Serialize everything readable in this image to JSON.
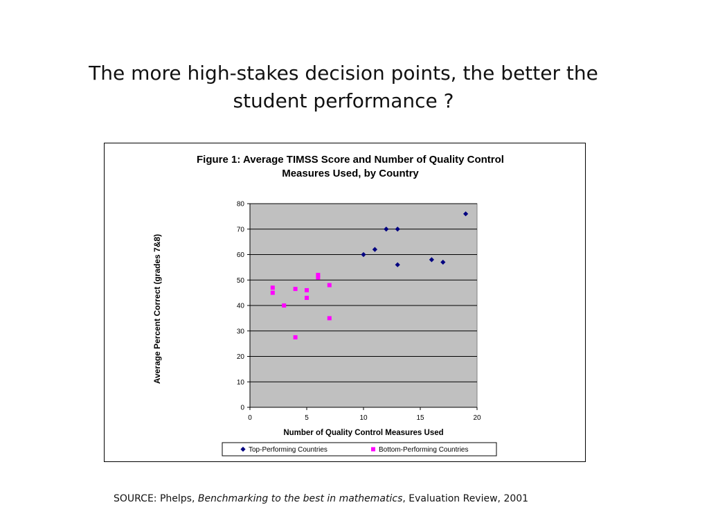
{
  "slide": {
    "title_line1": "The more high-stakes decision points, the better the",
    "title_line2": "student performance ?"
  },
  "source": {
    "prefix": "SOURCE: Phelps, ",
    "italic": "Benchmarking to the best in mathematics",
    "suffix": ", Evaluation Review, 2001"
  },
  "chart_data": {
    "type": "scatter",
    "title_line1": "Figure 1: Average TIMSS Score and Number of Quality Control",
    "title_line2": "Measures Used, by Country",
    "xlabel": "Number of Quality Control Measures Used",
    "ylabel": "Average Percent Correct (grades 7&8)",
    "xlim": [
      0,
      20
    ],
    "ylim": [
      0,
      80
    ],
    "xticks": [
      0,
      5,
      10,
      15,
      20
    ],
    "yticks": [
      0,
      10,
      20,
      30,
      40,
      50,
      60,
      70,
      80
    ],
    "grid": "horizontal",
    "plot_background": "#c0c0c0",
    "legend_position": "bottom",
    "series": [
      {
        "name": "Top-Performing Countries",
        "marker": "diamond",
        "color": "#000080",
        "points": [
          {
            "x": 10,
            "y": 60
          },
          {
            "x": 11,
            "y": 62
          },
          {
            "x": 12,
            "y": 70
          },
          {
            "x": 13,
            "y": 70
          },
          {
            "x": 13,
            "y": 56
          },
          {
            "x": 16,
            "y": 58
          },
          {
            "x": 17,
            "y": 57
          },
          {
            "x": 19,
            "y": 76
          }
        ]
      },
      {
        "name": "Bottom-Performing Countries",
        "marker": "square",
        "color": "#ff00ff",
        "points": [
          {
            "x": 2,
            "y": 47
          },
          {
            "x": 2,
            "y": 45
          },
          {
            "x": 3,
            "y": 40
          },
          {
            "x": 4,
            "y": 46.5
          },
          {
            "x": 4,
            "y": 27.5
          },
          {
            "x": 5,
            "y": 46
          },
          {
            "x": 5,
            "y": 43
          },
          {
            "x": 6,
            "y": 52
          },
          {
            "x": 6,
            "y": 51
          },
          {
            "x": 7,
            "y": 48
          },
          {
            "x": 7,
            "y": 35
          }
        ]
      }
    ]
  }
}
